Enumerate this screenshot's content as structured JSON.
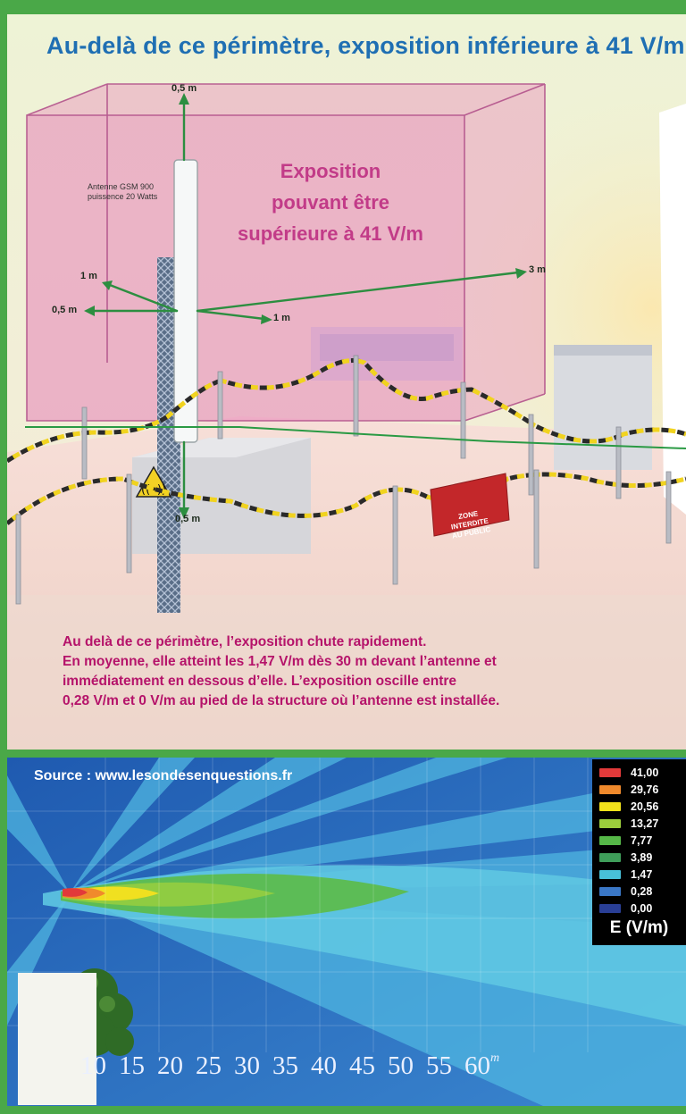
{
  "top": {
    "title": "Au-delà de ce périmètre, exposition inférieure à",
    "title_value": "41 V/m",
    "pink_label_lines": [
      "Exposition",
      "pouvant être",
      "supérieure à 41 V/m"
    ],
    "antenna_label_lines": [
      "Antenne GSM 900",
      "puissence 20 Watts"
    ],
    "distances": {
      "top": "0,5 m",
      "left_upper": "1 m",
      "left_lower": "0,5 m",
      "front": "1 m",
      "right": "3 m",
      "bottom": "0,5 m"
    },
    "sign_lines": [
      "ZONE",
      "INTERDITE",
      "AU PUBLIC"
    ],
    "note_lines": [
      "Au delà de ce périmètre, l’exposition chute rapidement.",
      "En moyenne, elle atteint les 1,47 V/m dès 30 m devant l’antenne et",
      "immédiatement en dessous d’elle. L’exposition oscille entre",
      "0,28 V/m et 0 V/m au pied de la structure où l’antenne est installée."
    ]
  },
  "bottom": {
    "source": "Source : www.lesondesenquestions.fr",
    "legend": [
      {
        "value": "41,00",
        "color": "#e23a3a"
      },
      {
        "value": "29,76",
        "color": "#f08a2c"
      },
      {
        "value": "20,56",
        "color": "#f2e21b"
      },
      {
        "value": "13,27",
        "color": "#9ccf3c"
      },
      {
        "value": "7,77",
        "color": "#56b848"
      },
      {
        "value": "3,89",
        "color": "#3f9e5a"
      },
      {
        "value": "1,47",
        "color": "#48c0d8"
      },
      {
        "value": "0,28",
        "color": "#3a77c6"
      },
      {
        "value": "0,00",
        "color": "#2a3f96"
      }
    ],
    "legend_unit": "E (V/m)",
    "axis_ticks": [
      "10",
      "15",
      "20",
      "25",
      "30",
      "35",
      "40",
      "45",
      "50",
      "55",
      "60"
    ],
    "axis_unit": "m"
  },
  "colors": {
    "frame_green": "#4aa848",
    "title_blue": "#1f6fb3",
    "pink_text": "#c23b88",
    "note_magenta": "#b5136a"
  }
}
